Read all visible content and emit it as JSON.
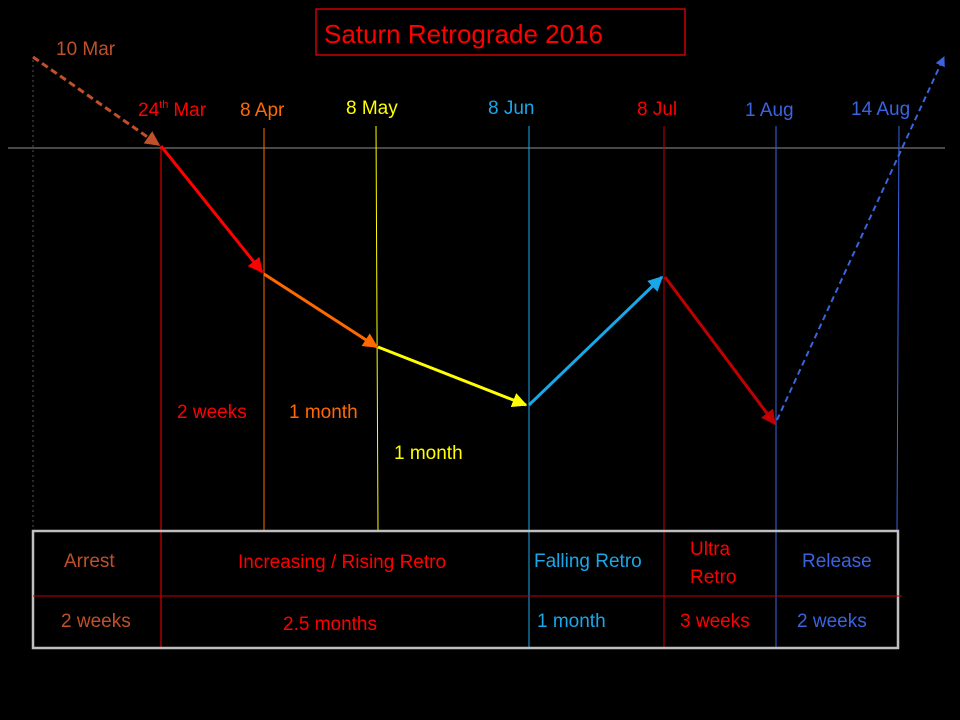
{
  "title": "Saturn Retrograde 2016",
  "dates": {
    "start": "10 Mar",
    "d24mar": "24",
    "d24mar_sup": "th",
    "d24mar_month": "Mar",
    "d8apr": "8 Apr",
    "d8may": "8 May",
    "d8jun": "8 Jun",
    "d8jul": "8 Jul",
    "d1aug": "1 Aug",
    "d14aug": "14 Aug"
  },
  "durations": {
    "two_weeks": "2 weeks",
    "one_month_a": "1 month",
    "one_month_b": "1 month"
  },
  "phases": {
    "arrest": {
      "label": "Arrest",
      "duration": "2 weeks"
    },
    "rising": {
      "label": "Increasing / Rising Retro",
      "duration": "2.5 months"
    },
    "falling": {
      "label": "Falling Retro",
      "duration": "1 month"
    },
    "ultra": {
      "label_line1": "Ultra",
      "label_line2": "Retro",
      "duration": "3 weeks"
    },
    "release": {
      "label": "Release",
      "duration": "2 weeks"
    }
  },
  "colors": {
    "background": "#000000",
    "arrest": "#C0502A",
    "red": "#FF0000",
    "orange": "#FF6A00",
    "yellow": "#FFFF00",
    "blue": "#1AA7E8",
    "darkred": "#C00000",
    "release": "#3A63E0",
    "table_border": "#BFBFBF",
    "guide": "#BFBFBF"
  }
}
